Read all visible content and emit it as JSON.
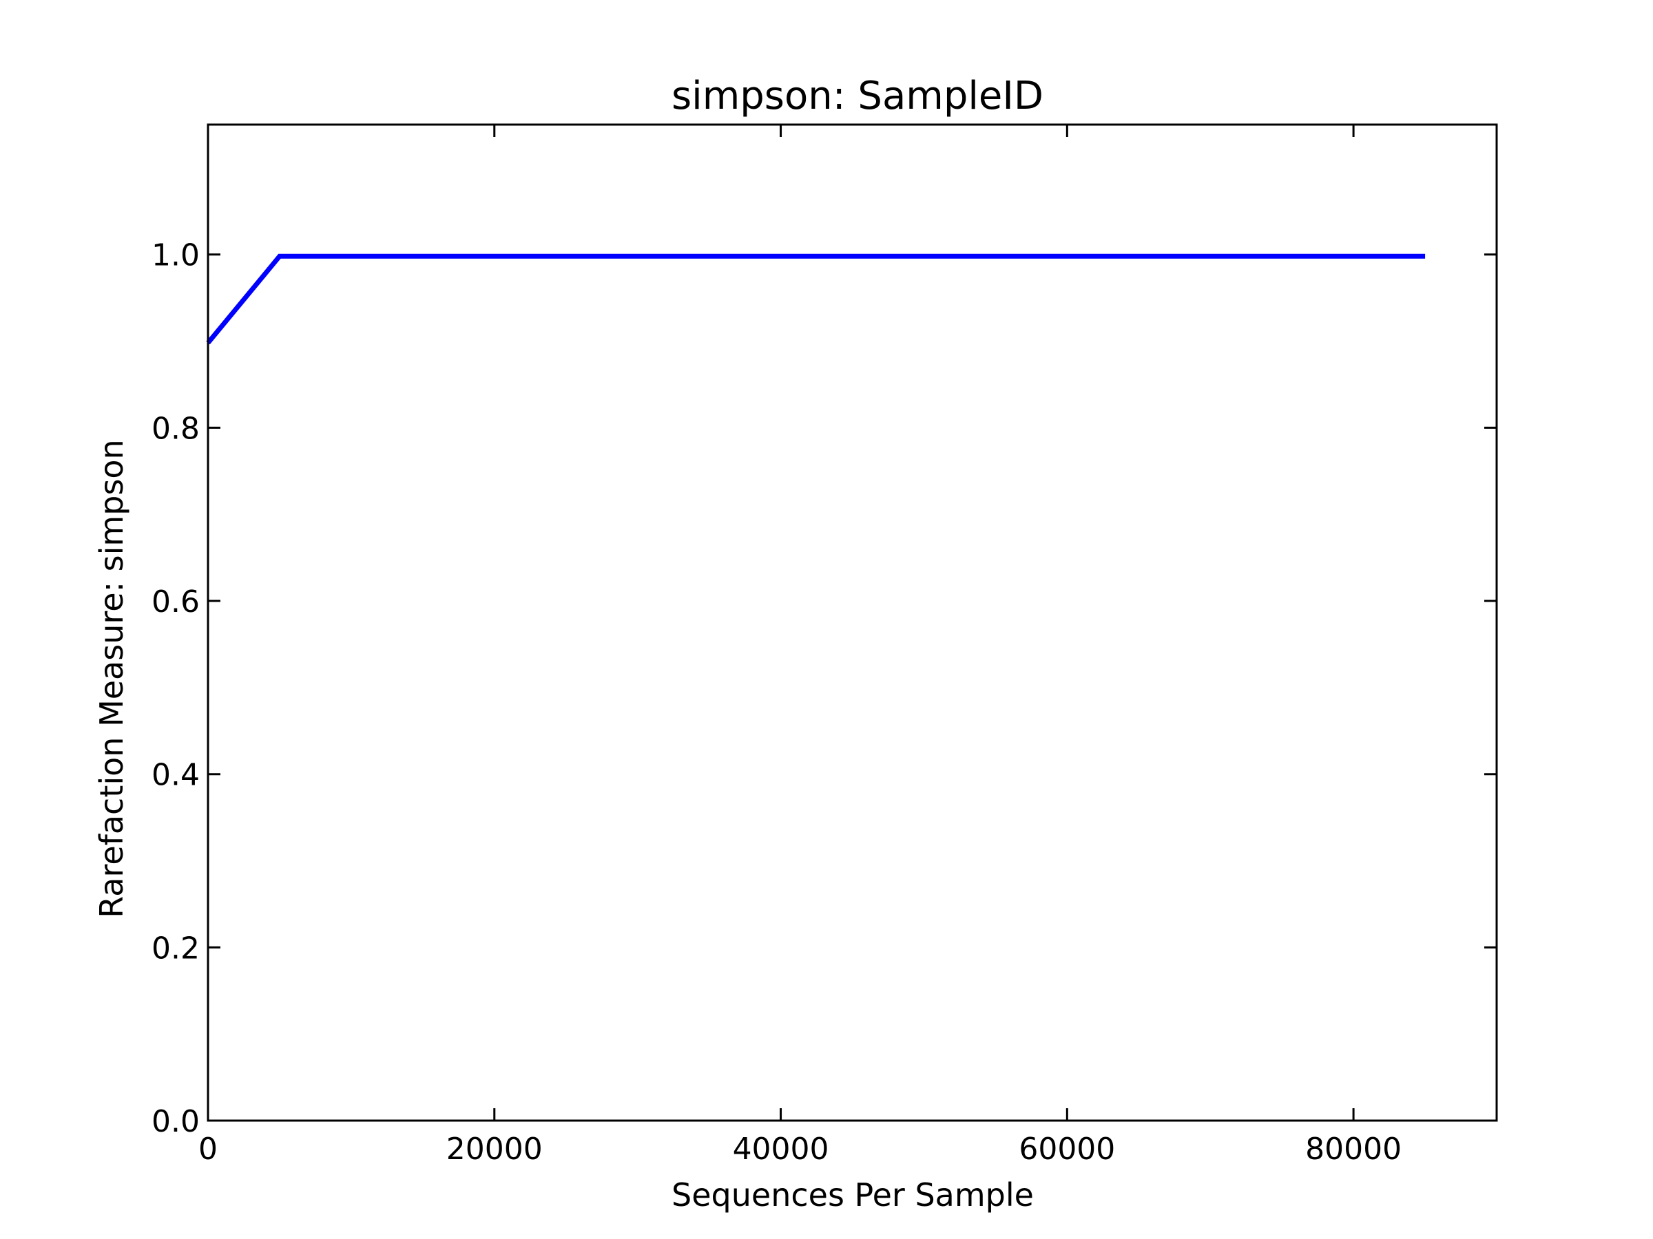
{
  "chart_data": {
    "type": "line",
    "title": "simpson: SampleID",
    "xlabel": "Sequences Per Sample",
    "ylabel": "Rarefaction Measure: simpson",
    "xlim": [
      0,
      90000
    ],
    "ylim": [
      0.0,
      1.15
    ],
    "xticks": [
      0,
      20000,
      40000,
      60000,
      80000
    ],
    "xtick_labels": [
      "0",
      "20000",
      "40000",
      "60000",
      "80000"
    ],
    "yticks": [
      0.0,
      0.2,
      0.4,
      0.6,
      0.8,
      1.0
    ],
    "ytick_labels": [
      "0.0",
      "0.2",
      "0.4",
      "0.6",
      "0.8",
      "1.0"
    ],
    "grid": false,
    "series": [
      {
        "color": "#0000ff",
        "x": [
          0,
          5000,
          85000
        ],
        "y": [
          0.898,
          0.998,
          0.998
        ]
      }
    ]
  }
}
